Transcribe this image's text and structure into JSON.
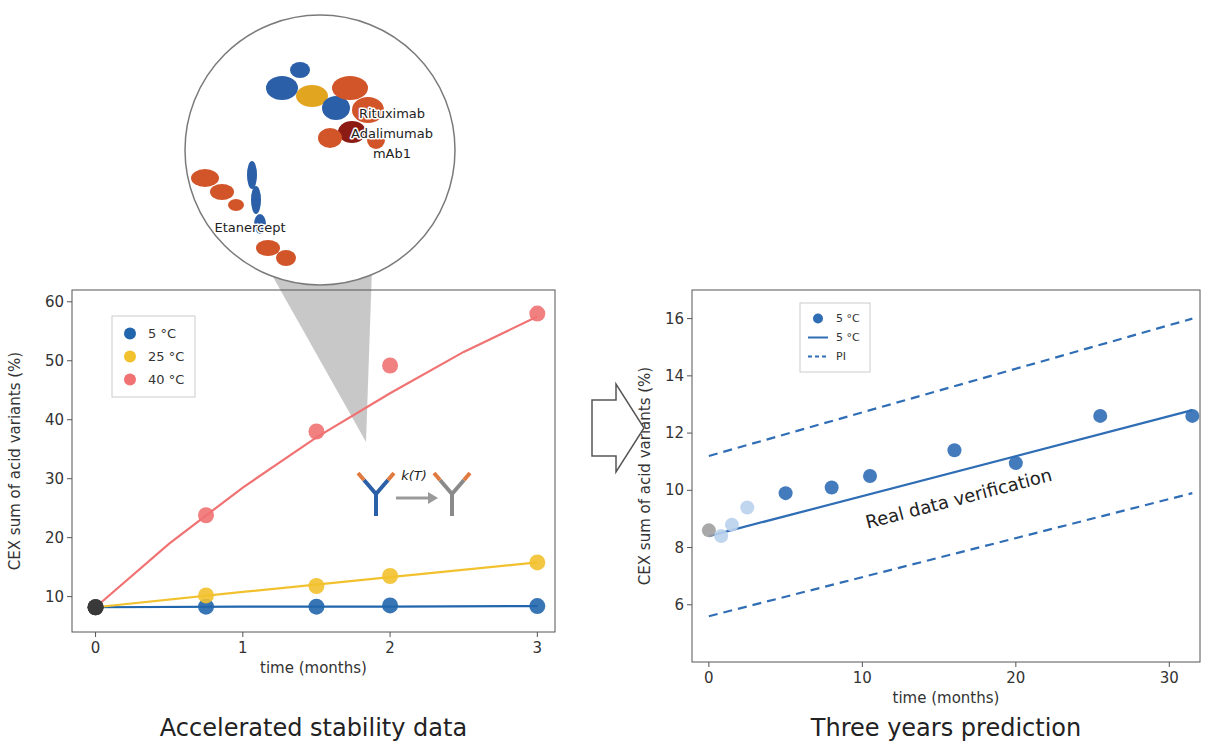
{
  "chart_data": [
    {
      "type": "scatter",
      "title": "Accelerated stability data",
      "x_label": "time (months)",
      "y_label": "CEX sum of acid variants (%)",
      "xlim": [
        -0.16,
        3.12
      ],
      "xticks": [
        0,
        1,
        2,
        3
      ],
      "ylim": [
        4,
        62
      ],
      "yticks": [
        10,
        20,
        30,
        40,
        50,
        60
      ],
      "grid": false,
      "legend": "upper left",
      "annotations": [
        "Etanercept",
        "Rituximab",
        "Adalimumab",
        "mAb1",
        "k(T)"
      ],
      "series": [
        {
          "name": "5 °C",
          "type": "scatter",
          "marker": "circle",
          "color": "#2166ac",
          "x": [
            0,
            0.75,
            1.5,
            2,
            3
          ],
          "values": [
            8.2,
            8.3,
            8.3,
            8.5,
            8.4
          ],
          "colors": [
            "#3a3a3a",
            "#2166ac",
            "#2166ac",
            "#2166ac",
            "#2166ac"
          ]
        },
        {
          "name": "25 °C",
          "type": "scatter",
          "marker": "circle",
          "color": "#f2c12e",
          "x": [
            0,
            0.75,
            1.5,
            2,
            3
          ],
          "values": [
            8.2,
            10.2,
            11.8,
            13.5,
            15.8
          ],
          "colors": [
            "#3a3a3a",
            "#f2c12e",
            "#f2c12e",
            "#f2c12e",
            "#f2c12e"
          ]
        },
        {
          "name": "40 °C",
          "type": "scatter",
          "marker": "circle",
          "color": "#f07272",
          "x": [
            0,
            0.75,
            1.5,
            2,
            3
          ],
          "values": [
            8.2,
            23.8,
            38,
            49.2,
            58
          ],
          "colors": [
            "#3a3a3a",
            "#f07272",
            "#f07272",
            "#f07272",
            "#f07272"
          ]
        },
        {
          "type": "line",
          "line_style": "solid",
          "color": "#2166ac",
          "x": [
            0,
            1,
            2,
            3
          ],
          "values": [
            8.2,
            8.3,
            8.3,
            8.4
          ]
        },
        {
          "type": "line",
          "line_style": "solid",
          "color": "#f2c12e",
          "x": [
            0,
            1,
            2,
            3
          ],
          "values": [
            8.2,
            10.8,
            13.3,
            15.8
          ]
        },
        {
          "type": "line",
          "line_style": "solid",
          "color": "#f07272",
          "x": [
            0,
            0.5,
            1,
            1.5,
            2,
            2.5,
            3
          ],
          "values": [
            8.2,
            19,
            28.5,
            37,
            44.5,
            51.5,
            57.5
          ]
        }
      ]
    },
    {
      "type": "scatter",
      "title": "Three years prediction",
      "x_label": "time (months)",
      "y_label": "CEX sum of acid variants (%)",
      "xlim": [
        -1.1,
        32
      ],
      "xticks": [
        0,
        10,
        20,
        30
      ],
      "ylim": [
        4,
        17
      ],
      "yticks": [
        6,
        8,
        10,
        12,
        14,
        16
      ],
      "grid": false,
      "legend": "upper left",
      "annotations": [
        "Real data verification"
      ],
      "series": [
        {
          "name": "5 °C",
          "type": "scatter",
          "marker": "circle",
          "color": "#2f6db5",
          "x": [
            0,
            0.8,
            1.5,
            2.5,
            5,
            8,
            10.5,
            16,
            20,
            25.5,
            31.5
          ],
          "values": [
            8.6,
            8.4,
            8.8,
            9.4,
            9.9,
            10.1,
            10.5,
            11.4,
            10.95,
            12.6,
            12.6
          ],
          "colors": [
            "#a0a0a0",
            "#b9d2ec",
            "#b9d2ec",
            "#b9d2ec",
            "#2f6db5",
            "#2f6db5",
            "#2f6db5",
            "#2f6db5",
            "#2f6db5",
            "#2f6db5",
            "#2f6db5"
          ]
        },
        {
          "name": "5 °C",
          "type": "line",
          "line_style": "solid",
          "color": "#2f6db5",
          "x": [
            0,
            31.5
          ],
          "values": [
            8.4,
            12.8
          ]
        },
        {
          "name": "PI",
          "type": "line",
          "line_style": "dashed",
          "color": "#2f6db5",
          "x": [
            0,
            31.5
          ],
          "values": [
            11.2,
            16.0
          ]
        },
        {
          "type": "line",
          "line_style": "dashed",
          "color": "#2f6db5",
          "x": [
            0,
            31.5
          ],
          "values": [
            5.6,
            9.9
          ]
        }
      ]
    }
  ]
}
